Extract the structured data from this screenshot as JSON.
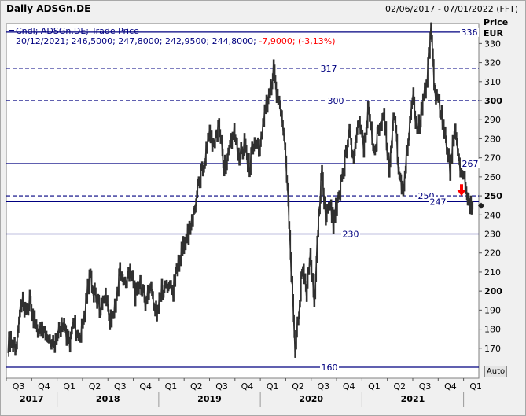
{
  "header": {
    "title": "Daily ADSGn.DE",
    "date_range": "02/06/2017 - 07/01/2022 (FFT)"
  },
  "legend": {
    "line1": "Cndl; ADSGn.DE; Trade Price",
    "ohlc": "20/12/2021; 246,5000; 247,8000; 242,9500; 244,8000;",
    "change": "-7,9000; (-3,13%)"
  },
  "auto_button": "Auto",
  "colors": {
    "plot_bg": "#ffffff",
    "price_line": "#303030",
    "level_line": "#000080",
    "change_text": "#ff0000",
    "arrow": "#ff0000"
  },
  "chart_data": {
    "type": "candlestick",
    "ylabel": "Price",
    "yunit": "EUR",
    "ylim": [
      160,
      338
    ],
    "yticks": [
      170,
      180,
      190,
      200,
      210,
      220,
      230,
      240,
      250,
      260,
      270,
      280,
      290,
      300,
      310,
      320,
      330
    ],
    "ytick_labels": [
      "170",
      "180",
      "190",
      "200",
      "210",
      "220",
      "230",
      "240",
      "250",
      "260",
      "270",
      "280",
      "290",
      "300",
      "310",
      "320",
      "330"
    ],
    "quarters": [
      {
        "label": "Q3",
        "year": "2017"
      },
      {
        "label": "Q4",
        "year": ""
      },
      {
        "label": "Q1",
        "year": "2018"
      },
      {
        "label": "Q2",
        "year": ""
      },
      {
        "label": "Q3",
        "year": ""
      },
      {
        "label": "Q4",
        "year": ""
      },
      {
        "label": "Q1",
        "year": "2019"
      },
      {
        "label": "Q2",
        "year": ""
      },
      {
        "label": "Q3",
        "year": ""
      },
      {
        "label": "Q4",
        "year": ""
      },
      {
        "label": "Q1",
        "year": "2020"
      },
      {
        "label": "Q2",
        "year": ""
      },
      {
        "label": "Q3",
        "year": ""
      },
      {
        "label": "Q4",
        "year": ""
      },
      {
        "label": "Q1",
        "year": "2021"
      },
      {
        "label": "Q2",
        "year": ""
      },
      {
        "label": "Q3",
        "year": ""
      },
      {
        "label": "Q4",
        "year": ""
      },
      {
        "label": "Q1",
        "year": ""
      }
    ],
    "years": [
      "2017",
      "2018",
      "2019",
      "2020",
      "2021"
    ],
    "levels": [
      {
        "value": 336,
        "label": "336",
        "style": "solid"
      },
      {
        "value": 317,
        "label": "317",
        "style": "dashed"
      },
      {
        "value": 300,
        "label": "300",
        "style": "dashed"
      },
      {
        "value": 267,
        "label": "267",
        "style": "solid"
      },
      {
        "value": 250,
        "label": "250",
        "style": "dashed"
      },
      {
        "value": 247,
        "label": "247",
        "style": "solid"
      },
      {
        "value": 230,
        "label": "230",
        "style": "solid"
      },
      {
        "value": 160,
        "label": "160",
        "style": "solid"
      }
    ],
    "last_value": 244.8,
    "series": [
      {
        "t": 0.0,
        "v": 172
      },
      {
        "t": 0.1,
        "v": 175
      },
      {
        "t": 0.25,
        "v": 171
      },
      {
        "t": 0.4,
        "v": 178
      },
      {
        "t": 0.55,
        "v": 198
      },
      {
        "t": 0.7,
        "v": 186
      },
      {
        "t": 0.85,
        "v": 195
      },
      {
        "t": 1.0,
        "v": 186
      },
      {
        "t": 1.2,
        "v": 178
      },
      {
        "t": 1.4,
        "v": 182
      },
      {
        "t": 1.6,
        "v": 175
      },
      {
        "t": 1.8,
        "v": 170
      },
      {
        "t": 2.0,
        "v": 178
      },
      {
        "t": 2.2,
        "v": 183
      },
      {
        "t": 2.4,
        "v": 172
      },
      {
        "t": 2.6,
        "v": 184
      },
      {
        "t": 2.8,
        "v": 172
      },
      {
        "t": 3.0,
        "v": 186
      },
      {
        "t": 3.2,
        "v": 208
      },
      {
        "t": 3.4,
        "v": 198
      },
      {
        "t": 3.6,
        "v": 192
      },
      {
        "t": 3.8,
        "v": 200
      },
      {
        "t": 4.0,
        "v": 184
      },
      {
        "t": 4.2,
        "v": 190
      },
      {
        "t": 4.4,
        "v": 210
      },
      {
        "t": 4.6,
        "v": 205
      },
      {
        "t": 4.8,
        "v": 212
      },
      {
        "t": 5.0,
        "v": 198
      },
      {
        "t": 5.2,
        "v": 206
      },
      {
        "t": 5.4,
        "v": 196
      },
      {
        "t": 5.6,
        "v": 202
      },
      {
        "t": 5.85,
        "v": 188
      },
      {
        "t": 6.05,
        "v": 200
      },
      {
        "t": 6.3,
        "v": 206
      },
      {
        "t": 6.5,
        "v": 200
      },
      {
        "t": 6.7,
        "v": 214
      },
      {
        "t": 6.95,
        "v": 226
      },
      {
        "t": 7.1,
        "v": 230
      },
      {
        "t": 7.3,
        "v": 242
      },
      {
        "t": 7.5,
        "v": 258
      },
      {
        "t": 7.7,
        "v": 265
      },
      {
        "t": 7.9,
        "v": 282
      },
      {
        "t": 8.1,
        "v": 276
      },
      {
        "t": 8.3,
        "v": 286
      },
      {
        "t": 8.5,
        "v": 265
      },
      {
        "t": 8.7,
        "v": 273
      },
      {
        "t": 8.9,
        "v": 284
      },
      {
        "t": 9.1,
        "v": 270
      },
      {
        "t": 9.3,
        "v": 278
      },
      {
        "t": 9.5,
        "v": 264
      },
      {
        "t": 9.7,
        "v": 283
      },
      {
        "t": 9.9,
        "v": 270
      },
      {
        "t": 10.1,
        "v": 294
      },
      {
        "t": 10.3,
        "v": 302
      },
      {
        "t": 10.45,
        "v": 317
      },
      {
        "t": 10.6,
        "v": 300
      },
      {
        "t": 10.8,
        "v": 292
      },
      {
        "t": 11.0,
        "v": 252
      },
      {
        "t": 11.15,
        "v": 210
      },
      {
        "t": 11.3,
        "v": 168
      },
      {
        "t": 11.45,
        "v": 190
      },
      {
        "t": 11.6,
        "v": 215
      },
      {
        "t": 11.75,
        "v": 200
      },
      {
        "t": 11.9,
        "v": 222
      },
      {
        "t": 12.05,
        "v": 194
      },
      {
        "t": 12.2,
        "v": 232
      },
      {
        "t": 12.35,
        "v": 262
      },
      {
        "t": 12.5,
        "v": 240
      },
      {
        "t": 12.65,
        "v": 248
      },
      {
        "t": 12.8,
        "v": 236
      },
      {
        "t": 13.0,
        "v": 250
      },
      {
        "t": 13.2,
        "v": 260
      },
      {
        "t": 13.4,
        "v": 284
      },
      {
        "t": 13.6,
        "v": 270
      },
      {
        "t": 13.8,
        "v": 290
      },
      {
        "t": 14.0,
        "v": 276
      },
      {
        "t": 14.2,
        "v": 298
      },
      {
        "t": 14.4,
        "v": 270
      },
      {
        "t": 14.6,
        "v": 286
      },
      {
        "t": 14.8,
        "v": 292
      },
      {
        "t": 15.0,
        "v": 266
      },
      {
        "t": 15.2,
        "v": 294
      },
      {
        "t": 15.4,
        "v": 262
      },
      {
        "t": 15.55,
        "v": 250
      },
      {
        "t": 15.75,
        "v": 282
      },
      {
        "t": 15.95,
        "v": 302
      },
      {
        "t": 16.1,
        "v": 282
      },
      {
        "t": 16.3,
        "v": 296
      },
      {
        "t": 16.5,
        "v": 312
      },
      {
        "t": 16.65,
        "v": 336
      },
      {
        "t": 16.8,
        "v": 305
      },
      {
        "t": 17.0,
        "v": 296
      },
      {
        "t": 17.2,
        "v": 282
      },
      {
        "t": 17.4,
        "v": 262
      },
      {
        "t": 17.6,
        "v": 290
      },
      {
        "t": 17.8,
        "v": 264
      },
      {
        "t": 18.0,
        "v": 255
      },
      {
        "t": 18.15,
        "v": 247
      },
      {
        "t": 18.3,
        "v": 244.8
      }
    ]
  }
}
